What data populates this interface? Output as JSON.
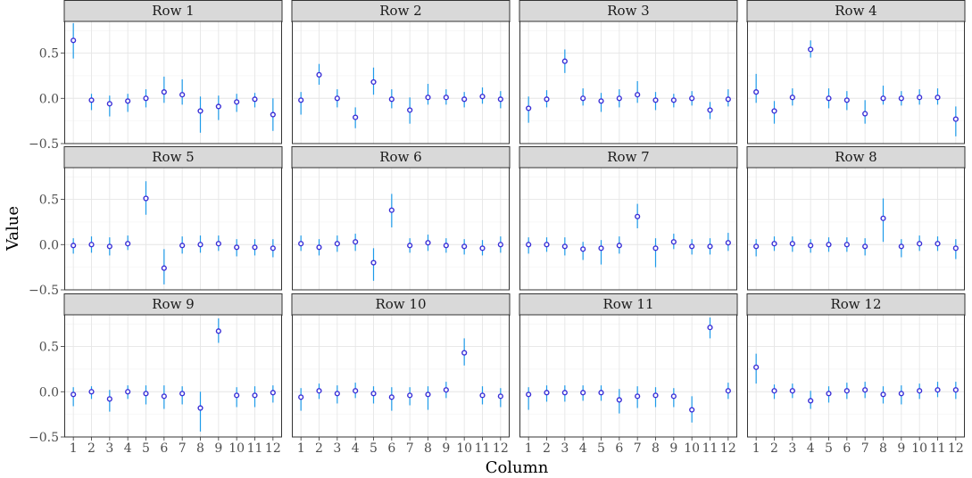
{
  "chart_data": {
    "type": "scatter",
    "subtype": "faceted point estimates with error bars",
    "xlabel": "Column",
    "ylabel": "Value",
    "x_categories": [
      "1",
      "2",
      "3",
      "4",
      "5",
      "6",
      "7",
      "8",
      "9",
      "10",
      "11",
      "12"
    ],
    "y_ticks": [
      -0.5,
      0.0,
      0.5
    ],
    "y_tick_labels": [
      "−0.5",
      "0.0",
      "0.5"
    ],
    "ylim": [
      -0.5,
      0.85
    ],
    "grid": true,
    "colors": {
      "point_outline": "#3a2fd6",
      "point_fill": "#ffffff",
      "error_bar": "#1e9be9",
      "strip_background": "#d9d9d9"
    },
    "facets": [
      {
        "label": "Row 1",
        "values": [
          0.64,
          -0.02,
          -0.06,
          -0.03,
          0.0,
          0.07,
          0.04,
          -0.14,
          -0.09,
          -0.04,
          -0.01,
          -0.18
        ],
        "lower": [
          0.44,
          -0.13,
          -0.2,
          -0.15,
          -0.1,
          -0.05,
          -0.07,
          -0.38,
          -0.24,
          -0.15,
          -0.1,
          -0.36
        ],
        "upper": [
          0.83,
          0.05,
          0.03,
          0.05,
          0.1,
          0.24,
          0.21,
          0.02,
          0.03,
          0.05,
          0.06,
          0.0
        ]
      },
      {
        "label": "Row 2",
        "values": [
          -0.02,
          0.26,
          0.0,
          -0.21,
          0.18,
          -0.01,
          -0.13,
          0.01,
          0.01,
          -0.01,
          0.02,
          -0.01
        ],
        "lower": [
          -0.18,
          0.15,
          -0.1,
          -0.33,
          0.04,
          -0.11,
          -0.28,
          -0.07,
          -0.07,
          -0.1,
          -0.06,
          -0.11
        ],
        "upper": [
          0.07,
          0.38,
          0.1,
          -0.1,
          0.34,
          0.1,
          0.01,
          0.16,
          0.1,
          0.07,
          0.12,
          0.08
        ]
      },
      {
        "label": "Row 3",
        "values": [
          -0.11,
          -0.01,
          0.41,
          0.0,
          -0.03,
          0.0,
          0.04,
          -0.02,
          -0.02,
          0.0,
          -0.13,
          -0.01
        ],
        "lower": [
          -0.27,
          -0.1,
          0.28,
          -0.08,
          -0.15,
          -0.1,
          -0.05,
          -0.13,
          -0.1,
          -0.08,
          -0.23,
          -0.09
        ],
        "upper": [
          0.02,
          0.09,
          0.54,
          0.11,
          0.06,
          0.1,
          0.19,
          0.07,
          0.05,
          0.08,
          -0.04,
          0.1
        ]
      },
      {
        "label": "Row 4",
        "values": [
          0.07,
          -0.14,
          0.01,
          0.54,
          0.0,
          -0.02,
          -0.17,
          0.0,
          0.0,
          0.01,
          0.01,
          -0.23
        ],
        "lower": [
          -0.05,
          -0.28,
          -0.08,
          0.45,
          -0.11,
          -0.13,
          -0.28,
          -0.07,
          -0.08,
          -0.07,
          -0.07,
          -0.42
        ],
        "upper": [
          0.27,
          -0.03,
          0.11,
          0.64,
          0.11,
          0.08,
          -0.02,
          0.14,
          0.08,
          0.1,
          0.11,
          -0.09
        ]
      },
      {
        "label": "Row 5",
        "values": [
          -0.01,
          0.0,
          -0.02,
          0.01,
          0.51,
          -0.26,
          -0.01,
          0.0,
          0.01,
          -0.03,
          -0.03,
          -0.04
        ],
        "lower": [
          -0.1,
          -0.09,
          -0.12,
          -0.06,
          0.33,
          -0.44,
          -0.1,
          -0.09,
          -0.07,
          -0.13,
          -0.12,
          -0.14
        ],
        "upper": [
          0.07,
          0.09,
          0.08,
          0.1,
          0.7,
          -0.05,
          0.09,
          0.1,
          0.1,
          0.06,
          0.06,
          0.06
        ]
      },
      {
        "label": "Row 6",
        "values": [
          0.01,
          -0.03,
          0.01,
          0.03,
          -0.2,
          0.38,
          -0.01,
          0.02,
          -0.01,
          -0.02,
          -0.04,
          0.0
        ],
        "lower": [
          -0.07,
          -0.12,
          -0.08,
          -0.07,
          -0.4,
          0.19,
          -0.09,
          -0.07,
          -0.09,
          -0.11,
          -0.12,
          -0.09
        ],
        "upper": [
          0.1,
          0.06,
          0.1,
          0.12,
          -0.04,
          0.56,
          0.07,
          0.11,
          0.07,
          0.06,
          0.05,
          0.09
        ]
      },
      {
        "label": "Row 7",
        "values": [
          0.0,
          0.0,
          -0.02,
          -0.05,
          -0.04,
          -0.01,
          0.31,
          -0.04,
          0.03,
          -0.02,
          -0.02,
          0.02
        ],
        "lower": [
          -0.1,
          -0.08,
          -0.12,
          -0.17,
          -0.22,
          -0.1,
          0.18,
          -0.25,
          -0.05,
          -0.11,
          -0.11,
          -0.07
        ],
        "upper": [
          0.08,
          0.08,
          0.08,
          0.03,
          0.05,
          0.09,
          0.45,
          0.07,
          0.12,
          0.06,
          0.07,
          0.13
        ]
      },
      {
        "label": "Row 8",
        "values": [
          -0.02,
          0.01,
          0.01,
          -0.01,
          0.0,
          0.0,
          -0.02,
          0.29,
          -0.02,
          0.01,
          0.01,
          -0.04
        ],
        "lower": [
          -0.13,
          -0.07,
          -0.08,
          -0.09,
          -0.08,
          -0.08,
          -0.12,
          0.03,
          -0.14,
          -0.07,
          -0.07,
          -0.16
        ],
        "upper": [
          0.06,
          0.09,
          0.09,
          0.06,
          0.08,
          0.08,
          0.07,
          0.51,
          0.06,
          0.1,
          0.09,
          0.06
        ]
      },
      {
        "label": "Row 9",
        "values": [
          -0.03,
          0.0,
          -0.08,
          0.0,
          -0.02,
          -0.05,
          -0.02,
          -0.18,
          0.67,
          -0.04,
          -0.04,
          -0.01
        ],
        "lower": [
          -0.16,
          -0.08,
          -0.22,
          -0.08,
          -0.14,
          -0.19,
          -0.14,
          -0.44,
          0.54,
          -0.17,
          -0.17,
          -0.12
        ],
        "upper": [
          0.05,
          0.06,
          0.02,
          0.07,
          0.07,
          0.07,
          0.06,
          0.0,
          0.81,
          0.05,
          0.06,
          0.07
        ]
      },
      {
        "label": "Row 10",
        "values": [
          -0.06,
          0.01,
          -0.02,
          0.01,
          -0.02,
          -0.06,
          -0.04,
          -0.03,
          0.02,
          0.43,
          -0.04,
          -0.05
        ],
        "lower": [
          -0.21,
          -0.08,
          -0.13,
          -0.07,
          -0.13,
          -0.21,
          -0.15,
          -0.2,
          -0.07,
          0.29,
          -0.14,
          -0.17
        ],
        "upper": [
          0.04,
          0.09,
          0.07,
          0.1,
          0.06,
          0.05,
          0.05,
          0.06,
          0.11,
          0.59,
          0.06,
          0.04
        ]
      },
      {
        "label": "Row 11",
        "values": [
          -0.03,
          -0.01,
          -0.01,
          -0.01,
          -0.01,
          -0.09,
          -0.05,
          -0.04,
          -0.05,
          -0.2,
          0.71,
          0.01
        ],
        "lower": [
          -0.2,
          -0.11,
          -0.11,
          -0.1,
          -0.1,
          -0.24,
          -0.18,
          -0.17,
          -0.17,
          -0.34,
          0.59,
          -0.08
        ],
        "upper": [
          0.05,
          0.07,
          0.07,
          0.07,
          0.07,
          0.03,
          0.06,
          0.05,
          0.04,
          -0.05,
          0.82,
          0.1
        ]
      },
      {
        "label": "Row 12",
        "values": [
          0.27,
          0.01,
          0.01,
          -0.1,
          -0.02,
          0.01,
          0.02,
          -0.03,
          -0.02,
          0.01,
          0.02,
          0.02
        ],
        "lower": [
          0.09,
          -0.08,
          -0.07,
          -0.19,
          -0.12,
          -0.08,
          -0.07,
          -0.13,
          -0.14,
          -0.08,
          -0.06,
          -0.08
        ],
        "upper": [
          0.42,
          0.08,
          0.09,
          0.01,
          0.06,
          0.1,
          0.11,
          0.06,
          0.07,
          0.09,
          0.11,
          0.11
        ]
      }
    ]
  }
}
